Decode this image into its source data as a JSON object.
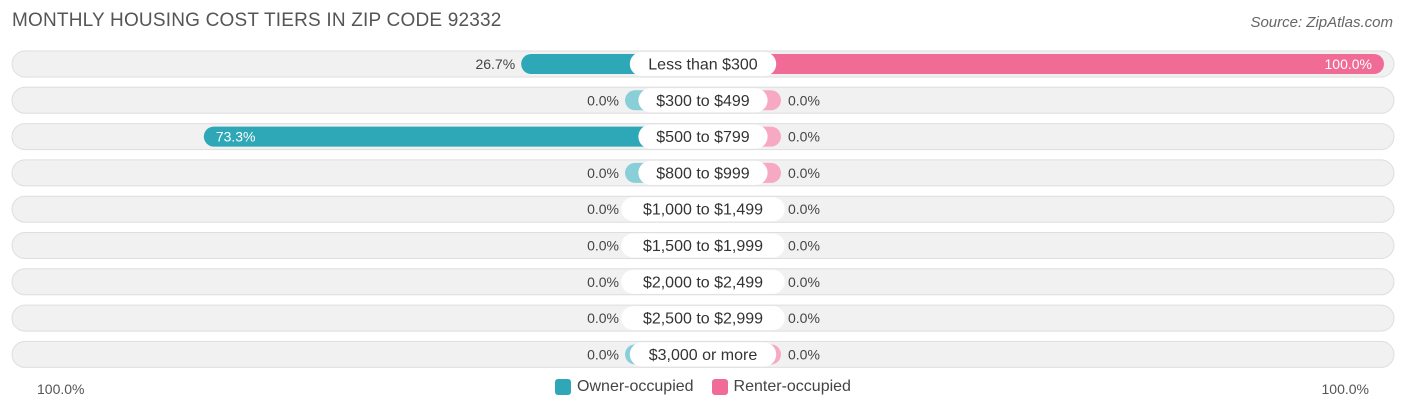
{
  "title": "MONTHLY HOUSING COST TIERS IN ZIP CODE 92332",
  "source": "Source: ZipAtlas.com",
  "colors": {
    "owner": "#2ea7b7",
    "owner_light": "#8acfd8",
    "renter": "#f06c97",
    "renter_light": "#f7a9c3"
  },
  "chart_data": {
    "type": "bar",
    "orientation": "diverging-horizontal",
    "categories": [
      "Less than $300",
      "$300 to $499",
      "$500 to $799",
      "$800 to $999",
      "$1,000 to $1,499",
      "$1,500 to $1,999",
      "$2,000 to $2,499",
      "$2,500 to $2,999",
      "$3,000 or more"
    ],
    "series": [
      {
        "name": "Owner-occupied",
        "values": [
          26.7,
          0.0,
          73.3,
          0.0,
          0.0,
          0.0,
          0.0,
          0.0,
          0.0
        ]
      },
      {
        "name": "Renter-occupied",
        "values": [
          100.0,
          0.0,
          0.0,
          0.0,
          0.0,
          0.0,
          0.0,
          0.0,
          0.0
        ]
      }
    ],
    "value_labels": {
      "owner": [
        "26.7%",
        "0.0%",
        "73.3%",
        "0.0%",
        "0.0%",
        "0.0%",
        "0.0%",
        "0.0%",
        "0.0%"
      ],
      "renter": [
        "100.0%",
        "0.0%",
        "0.0%",
        "0.0%",
        "0.0%",
        "0.0%",
        "0.0%",
        "0.0%",
        "0.0%"
      ]
    },
    "xlim": [
      -100,
      100
    ],
    "axis_left_label": "100.0%",
    "axis_right_label": "100.0%",
    "legend_position": "bottom-center"
  }
}
